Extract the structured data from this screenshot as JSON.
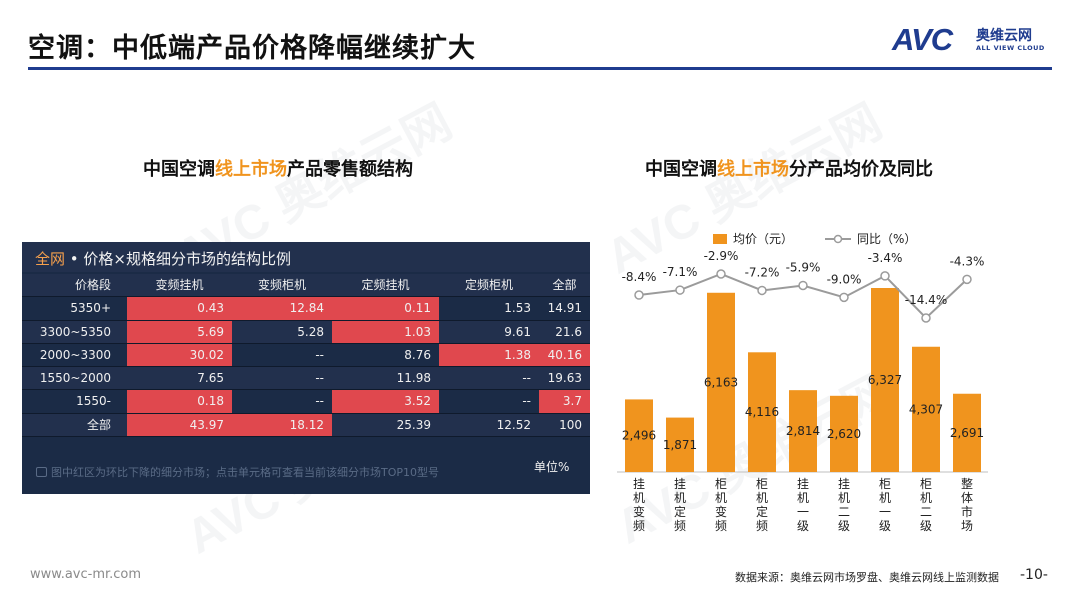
{
  "header": {
    "title": "空调：中低端产品价格降幅继续扩大"
  },
  "logo": {
    "mark": "AVC",
    "name_cn": "奥维云网",
    "name_en": "ALL VIEW CLOUD"
  },
  "watermark": {
    "name_cn": "奥维云网",
    "mark": "AVC",
    "name_en": "ALL VIEW CLOUD"
  },
  "left": {
    "title_pre": "中国空调",
    "title_hl": "线上市场",
    "title_post": "产品零售额结构",
    "panel_tag": "全网",
    "panel_title": " • 价格×规格细分市场的结构比例",
    "columns": [
      "价格段",
      "变频挂机",
      "变频柜机",
      "定频挂机",
      "定频柜机",
      "全部"
    ],
    "rows": [
      {
        "cells": [
          "5350+",
          "0.43",
          "12.84",
          "0.11",
          "1.53",
          "14.91"
        ],
        "red": [
          false,
          true,
          true,
          true,
          false,
          false
        ]
      },
      {
        "cells": [
          "3300~5350",
          "5.69",
          "5.28",
          "1.03",
          "9.61",
          "21.6"
        ],
        "red": [
          false,
          true,
          false,
          true,
          false,
          false
        ]
      },
      {
        "cells": [
          "2000~3300",
          "30.02",
          "--",
          "8.76",
          "1.38",
          "40.16"
        ],
        "red": [
          false,
          true,
          false,
          false,
          true,
          true
        ]
      },
      {
        "cells": [
          "1550~2000",
          "7.65",
          "--",
          "11.98",
          "--",
          "19.63"
        ],
        "red": [
          false,
          false,
          false,
          false,
          false,
          false
        ]
      },
      {
        "cells": [
          "1550-",
          "0.18",
          "--",
          "3.52",
          "--",
          "3.7"
        ],
        "red": [
          false,
          true,
          false,
          true,
          false,
          true
        ]
      },
      {
        "cells": [
          "全部",
          "43.97",
          "18.12",
          "25.39",
          "12.52",
          "100"
        ],
        "red": [
          false,
          true,
          true,
          false,
          false,
          false
        ]
      }
    ],
    "note": "图中红区为环比下降的细分市场；点击单元格可查看当前该细分市场TOP10型号",
    "unit": "单位%"
  },
  "right": {
    "title_pre": "中国空调",
    "title_hl": "线上市场",
    "title_post": "分产品均价及同比"
  },
  "chart_data": {
    "type": "bar",
    "categories": [
      "挂机变频",
      "挂机定频",
      "柜机变频",
      "柜机定频",
      "挂机一级",
      "挂机二级",
      "柜机一级",
      "柜机二级",
      "整体市场"
    ],
    "series": [
      {
        "name": "均价（元）",
        "type": "bar",
        "values": [
          2496,
          1871,
          6163,
          4116,
          2814,
          2620,
          6327,
          4307,
          2691
        ],
        "labels": [
          "2,496",
          "1,871",
          "6,163",
          "4,116",
          "2,814",
          "2,620",
          "6,327",
          "4,307",
          "2,691"
        ],
        "color": "#f0941e"
      },
      {
        "name": "同比（%）",
        "type": "line",
        "values": [
          -8.4,
          -7.1,
          -2.9,
          -7.2,
          -5.9,
          -9.0,
          -3.4,
          -14.4,
          -4.3
        ],
        "labels": [
          "-8.4%",
          "-7.1%",
          "-2.9%",
          "-7.2%",
          "-5.9%",
          "-9.0%",
          "-3.4%",
          "-14.4%",
          "-4.3%"
        ],
        "color": "#9b9b9b"
      }
    ],
    "legend_position": "top",
    "grid": false
  },
  "footer": {
    "url": "www.avc-mr.com",
    "source": "数据来源：奥维云网市场罗盘、奥维云网线上监测数据",
    "page": "-10-"
  }
}
